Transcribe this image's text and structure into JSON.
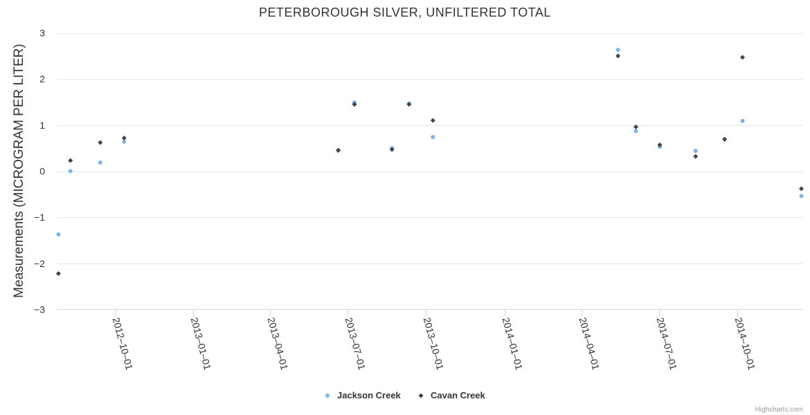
{
  "chart_data": {
    "type": "scatter",
    "title": "PETERBOROUGH SILVER, UNFILTERED TOTAL",
    "ylabel": "Measurements (MICROGRAM PER LITER)",
    "xlabel": "",
    "ylim": [
      -3,
      3
    ],
    "yticks": [
      -3,
      -2,
      -1,
      0,
      1,
      2,
      3
    ],
    "ytick_labels": [
      "−3",
      "−2",
      "−1",
      "0",
      "1",
      "2",
      "3"
    ],
    "xlim": [
      "2012-07-25",
      "2014-12-17"
    ],
    "xticks": [
      "2012-10-01",
      "2013-01-01",
      "2013-04-01",
      "2013-07-01",
      "2013-10-01",
      "2014-01-01",
      "2014-04-01",
      "2014-07-01",
      "2014-10-01"
    ],
    "xtick_labels": [
      "2012–10–01",
      "2013–01–01",
      "2013–04–01",
      "2013–07–01",
      "2013–10–01",
      "2014–01–01",
      "2014–04–01",
      "2014–07–01",
      "2014–10–01"
    ],
    "legend_position": "bottom-center",
    "series": [
      {
        "name": "Jackson Creek",
        "marker": "circle",
        "color": "#7cb5ec",
        "points": [
          {
            "x": "2012-07-27",
            "y": -1.37
          },
          {
            "x": "2012-08-10",
            "y": 0.0
          },
          {
            "x": "2012-09-14",
            "y": 0.19
          },
          {
            "x": "2012-10-12",
            "y": 0.64
          },
          {
            "x": "2013-06-20",
            "y": 0.46
          },
          {
            "x": "2013-07-09",
            "y": 1.49
          },
          {
            "x": "2013-08-22",
            "y": 0.5
          },
          {
            "x": "2013-09-11",
            "y": 1.47
          },
          {
            "x": "2013-10-09",
            "y": 0.74
          },
          {
            "x": "2014-05-14",
            "y": 2.63
          },
          {
            "x": "2014-06-04",
            "y": 0.87
          },
          {
            "x": "2014-07-02",
            "y": 0.53
          },
          {
            "x": "2014-08-13",
            "y": 0.44
          },
          {
            "x": "2014-09-16",
            "y": 0.7
          },
          {
            "x": "2014-10-07",
            "y": 1.09
          },
          {
            "x": "2014-12-15",
            "y": -0.54
          }
        ]
      },
      {
        "name": "Cavan Creek",
        "marker": "diamond",
        "color": "#434348",
        "points": [
          {
            "x": "2012-07-27",
            "y": -2.22
          },
          {
            "x": "2012-08-10",
            "y": 0.23
          },
          {
            "x": "2012-09-14",
            "y": 0.62
          },
          {
            "x": "2012-10-12",
            "y": 0.72
          },
          {
            "x": "2013-06-20",
            "y": 0.45
          },
          {
            "x": "2013-07-09",
            "y": 1.45
          },
          {
            "x": "2013-08-22",
            "y": 0.47
          },
          {
            "x": "2013-09-11",
            "y": 1.45
          },
          {
            "x": "2013-10-09",
            "y": 1.1
          },
          {
            "x": "2014-05-14",
            "y": 2.5
          },
          {
            "x": "2014-06-04",
            "y": 0.96
          },
          {
            "x": "2014-07-02",
            "y": 0.57
          },
          {
            "x": "2014-08-13",
            "y": 0.32
          },
          {
            "x": "2014-09-16",
            "y": 0.69
          },
          {
            "x": "2014-10-07",
            "y": 2.47
          },
          {
            "x": "2014-12-15",
            "y": -0.38
          }
        ]
      }
    ]
  },
  "credits": "Highcharts.com"
}
